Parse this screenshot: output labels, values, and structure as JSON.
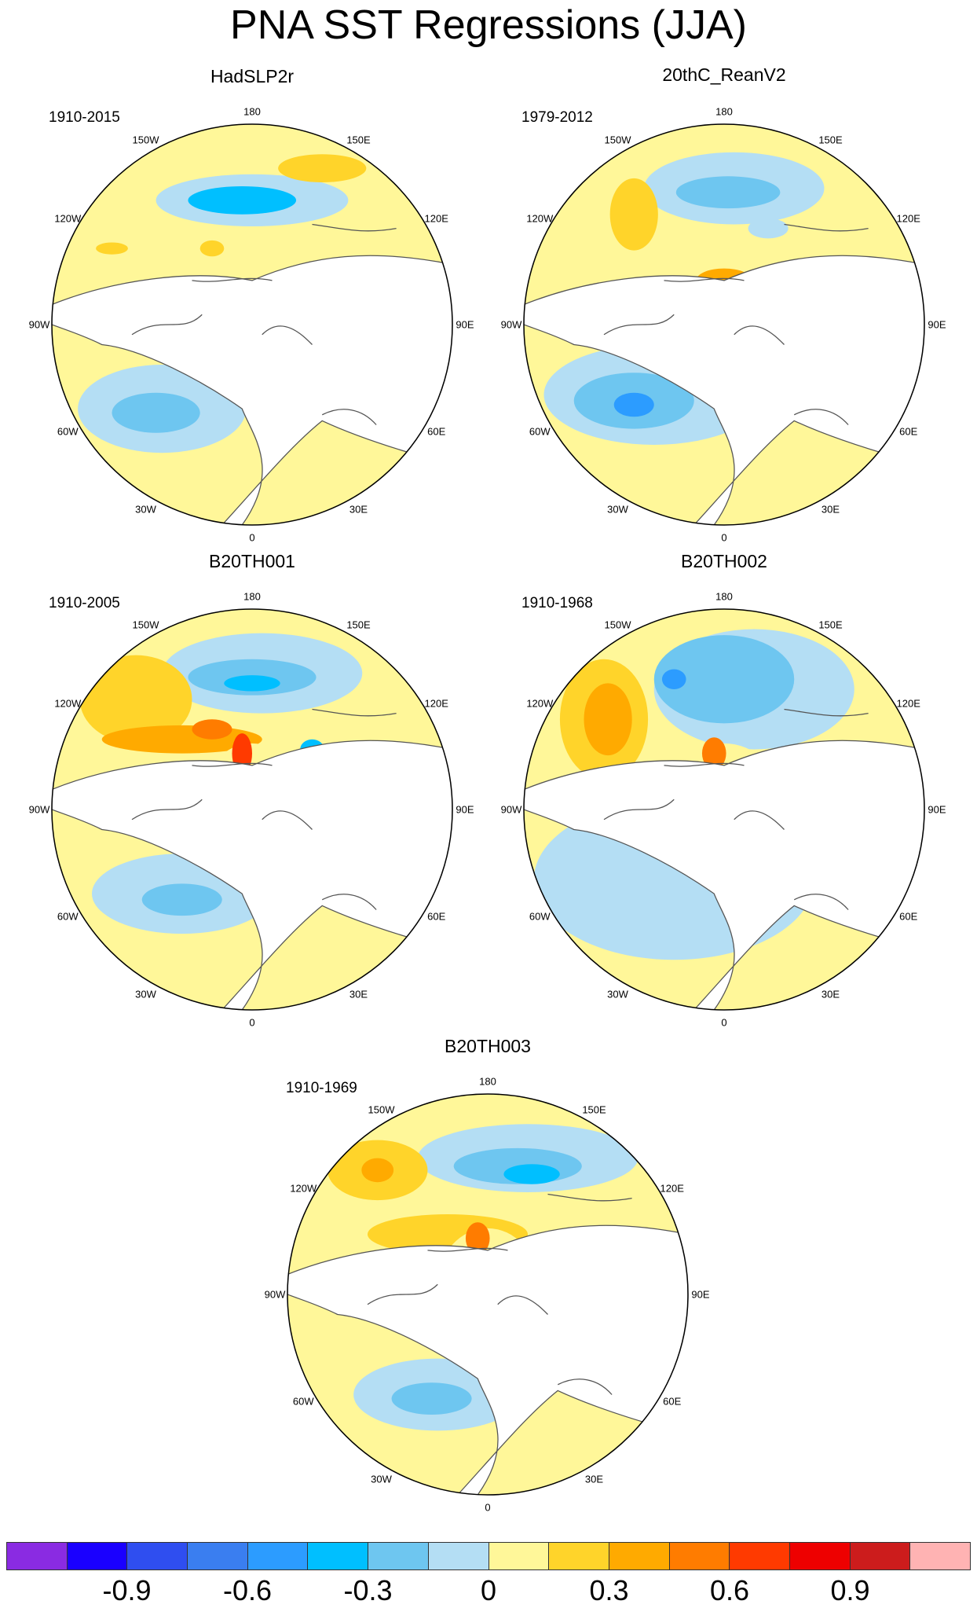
{
  "title": "PNA SST Regressions (JJA)",
  "panels": [
    {
      "name": "HadSLP2r",
      "period": "1910-2015"
    },
    {
      "name": "20thC_ReanV2",
      "period": "1979-2012"
    },
    {
      "name": "B20TH001",
      "period": "1910-2005"
    },
    {
      "name": "B20TH002",
      "period": "1910-1968"
    },
    {
      "name": "B20TH003",
      "period": "1910-1969"
    }
  ],
  "longitude_labels": {
    "top": "180",
    "upper_right": "150E",
    "right_upper": "120E",
    "right": "90E",
    "right_lower": "60E",
    "lower_right": "30E",
    "bottom": "0",
    "lower_left": "30W",
    "left_lower": "60W",
    "left": "90W",
    "left_upper": "120W",
    "upper_left": "150W"
  },
  "colorbar": {
    "colors": [
      "#8a2be2",
      "#1a00ff",
      "#2f4ef0",
      "#3a7ef0",
      "#2c9cff",
      "#00bfff",
      "#6ec6f0",
      "#b4def4",
      "#fff799",
      "#ffd42a",
      "#ffaa00",
      "#ff7c00",
      "#ff3a00",
      "#ee0000",
      "#cc1c1c",
      "#ffb3b3"
    ],
    "labels": [
      "-0.9",
      "-0.6",
      "-0.3",
      "0",
      "0.3",
      "0.6",
      "0.9"
    ]
  }
}
